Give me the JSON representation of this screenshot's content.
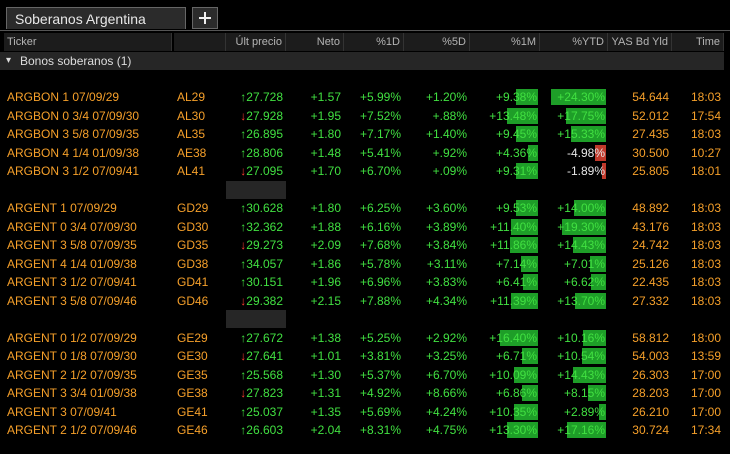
{
  "tab": "Soberanos Argentina",
  "headers": [
    "Ticker",
    "",
    "Últ precio",
    "Neto",
    "%1D",
    "%5D",
    "%1M",
    "%YTD",
    "YAS Bd Yld",
    "Time"
  ],
  "group_label": "Bonos soberanos (1)",
  "groups": [
    [
      [
        "ARGBON 1 07/09/29",
        "AL29",
        "↑27.728",
        "+1.57",
        "+5.99%",
        "+1.20%",
        "+9.38%",
        "+24.30%",
        "54.644",
        "18:03"
      ],
      [
        "ARGBON 0 3/4 07/09/30",
        "AL30",
        "↓27.928",
        "+1.95",
        "+7.52%",
        "+.88%",
        "+13.48%",
        "+17.75%",
        "52.012",
        "17:54"
      ],
      [
        "ARGBON 3 5/8 07/09/35",
        "AL35",
        "↑26.895",
        "+1.80",
        "+7.17%",
        "+1.40%",
        "+9.45%",
        "+15.33%",
        "27.435",
        "18:03"
      ],
      [
        "ARGBON 4 1/4 01/09/38",
        "AE38",
        "↑28.806",
        "+1.48",
        "+5.41%",
        "+.92%",
        "+4.36%",
        "-4.98%",
        "30.500",
        "10:27"
      ],
      [
        "ARGBON 3 1/2 07/09/41",
        "AL41",
        "↓27.095",
        "+1.70",
        "+6.70%",
        "+.09%",
        "+9.31%",
        "-1.89%",
        "25.805",
        "18:01"
      ]
    ],
    [
      [
        "ARGENT 1 07/09/29",
        "GD29",
        "↑30.628",
        "+1.80",
        "+6.25%",
        "+3.60%",
        "+9.53%",
        "+14.00%",
        "48.892",
        "18:03"
      ],
      [
        "ARGENT 0 3/4 07/09/30",
        "GD30",
        "↑32.362",
        "+1.88",
        "+6.16%",
        "+3.89%",
        "+11.40%",
        "+19.30%",
        "43.176",
        "18:03"
      ],
      [
        "ARGENT 3 5/8 07/09/35",
        "GD35",
        "↓29.273",
        "+2.09",
        "+7.68%",
        "+3.84%",
        "+11.86%",
        "+14.43%",
        "24.742",
        "18:03"
      ],
      [
        "ARGENT 4 1/4 01/09/38",
        "GD38",
        "↑34.057",
        "+1.86",
        "+5.78%",
        "+3.11%",
        "+7.14%",
        "+7.01%",
        "25.126",
        "18:03"
      ],
      [
        "ARGENT 3 1/2 07/09/41",
        "GD41",
        "↑30.151",
        "+1.96",
        "+6.96%",
        "+3.83%",
        "+6.41%",
        "+6.62%",
        "22.435",
        "18:03"
      ],
      [
        "ARGENT 3 5/8 07/09/46",
        "GD46",
        "↓29.382",
        "+2.15",
        "+7.88%",
        "+4.34%",
        "+11.39%",
        "+13.70%",
        "27.332",
        "18:03"
      ]
    ],
    [
      [
        "ARGENT 0 1/2 07/09/29",
        "GE29",
        "↑27.672",
        "+1.38",
        "+5.25%",
        "+2.92%",
        "+16.40%",
        "+10.16%",
        "58.812",
        "18:00"
      ],
      [
        "ARGENT 0 1/8 07/09/30",
        "GE30",
        "↓27.641",
        "+1.01",
        "+3.81%",
        "+3.25%",
        "+6.71%",
        "+10.54%",
        "54.003",
        "13:59"
      ],
      [
        "ARGENT 2 1/2 07/09/35",
        "GE35",
        "↑25.568",
        "+1.30",
        "+5.37%",
        "+6.70%",
        "+10.09%",
        "+14.43%",
        "26.303",
        "17:00"
      ],
      [
        "ARGENT 3 3/4 01/09/38",
        "GE38",
        "↓27.823",
        "+1.31",
        "+4.92%",
        "+8.66%",
        "+6.86%",
        "+8.15%",
        "28.203",
        "17:00"
      ],
      [
        "ARGENT 3 07/09/41",
        "GE41",
        "↑25.037",
        "+1.35",
        "+5.69%",
        "+4.24%",
        "+10.35%",
        "+2.89%",
        "26.210",
        "17:00"
      ],
      [
        "ARGENT 2 1/2 07/09/46",
        "GE46",
        "↑26.603",
        "+2.04",
        "+8.31%",
        "+4.75%",
        "+13.30%",
        "+17.16%",
        "30.724",
        "17:34"
      ]
    ]
  ]
}
